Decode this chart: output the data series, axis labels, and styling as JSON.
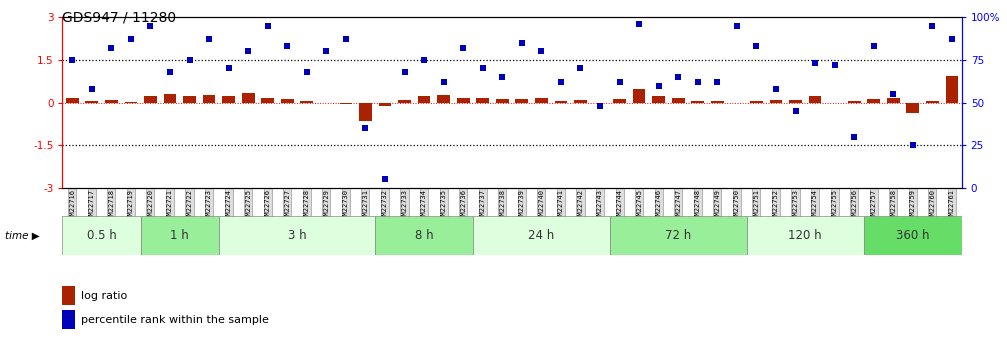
{
  "title": "GDS947 / 11280",
  "samples": [
    "GSM22716",
    "GSM22717",
    "GSM22718",
    "GSM22719",
    "GSM22720",
    "GSM22721",
    "GSM22722",
    "GSM22723",
    "GSM22724",
    "GSM22725",
    "GSM22726",
    "GSM22727",
    "GSM22728",
    "GSM22729",
    "GSM22730",
    "GSM22731",
    "GSM22732",
    "GSM22733",
    "GSM22734",
    "GSM22735",
    "GSM22736",
    "GSM22737",
    "GSM22738",
    "GSM22739",
    "GSM22740",
    "GSM22741",
    "GSM22742",
    "GSM22743",
    "GSM22744",
    "GSM22745",
    "GSM22746",
    "GSM22747",
    "GSM22748",
    "GSM22749",
    "GSM22750",
    "GSM22751",
    "GSM22752",
    "GSM22753",
    "GSM22754",
    "GSM22755",
    "GSM22756",
    "GSM22757",
    "GSM22758",
    "GSM22759",
    "GSM22760",
    "GSM22761"
  ],
  "log_ratio": [
    0.15,
    0.05,
    0.08,
    0.02,
    0.25,
    0.32,
    0.22,
    0.28,
    0.24,
    0.35,
    0.18,
    0.12,
    0.04,
    0.0,
    -0.05,
    -0.65,
    -0.12,
    0.08,
    0.22,
    0.28,
    0.18,
    0.15,
    0.12,
    0.14,
    0.15,
    0.05,
    0.1,
    0.0,
    0.12,
    0.48,
    0.22,
    0.18,
    0.06,
    0.04,
    -0.02,
    0.04,
    0.1,
    0.08,
    0.22,
    0.0,
    0.05,
    0.12,
    0.18,
    -0.35,
    0.05,
    0.95
  ],
  "percentile": [
    75,
    58,
    82,
    87,
    95,
    68,
    75,
    87,
    70,
    80,
    95,
    83,
    68,
    80,
    87,
    35,
    5,
    68,
    75,
    62,
    82,
    70,
    65,
    85,
    80,
    62,
    70,
    48,
    62,
    96,
    60,
    65,
    62,
    62,
    95,
    83,
    58,
    45,
    73,
    72,
    30,
    83,
    55,
    25,
    95,
    87
  ],
  "time_groups": [
    {
      "label": "0.5 h",
      "start": 0,
      "end": 4,
      "color": "#ddffdd"
    },
    {
      "label": "1 h",
      "start": 4,
      "end": 8,
      "color": "#99ee99"
    },
    {
      "label": "3 h",
      "start": 8,
      "end": 16,
      "color": "#ddffdd"
    },
    {
      "label": "8 h",
      "start": 16,
      "end": 21,
      "color": "#99ee99"
    },
    {
      "label": "24 h",
      "start": 21,
      "end": 28,
      "color": "#ddffdd"
    },
    {
      "label": "72 h",
      "start": 28,
      "end": 35,
      "color": "#99ee99"
    },
    {
      "label": "120 h",
      "start": 35,
      "end": 41,
      "color": "#ddffdd"
    },
    {
      "label": "360 h",
      "start": 41,
      "end": 46,
      "color": "#66dd66"
    }
  ],
  "bar_color": "#aa2200",
  "dot_color": "#0000bb",
  "background_color": "#ffffff",
  "title_fontsize": 10,
  "xtick_bg": "#dddddd",
  "hline_color": "black",
  "zero_line_color": "red"
}
